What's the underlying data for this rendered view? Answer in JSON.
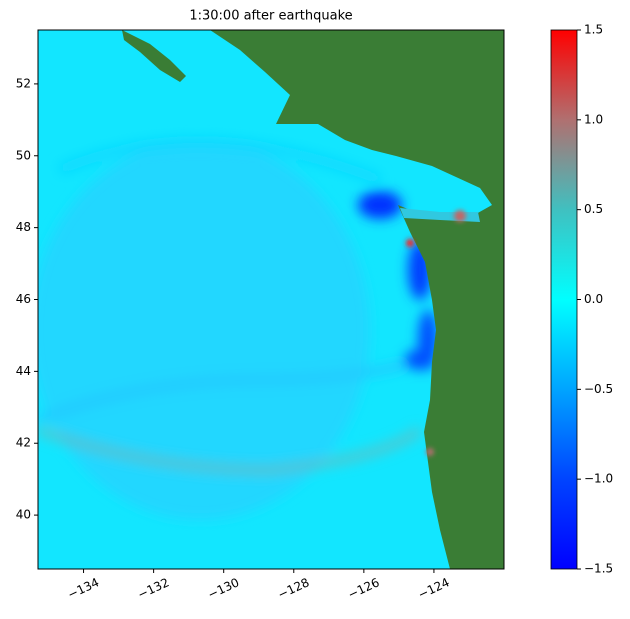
{
  "chart_data": {
    "type": "heatmap",
    "title": "1:30:00 after earthquake",
    "xlim": [
      -135.3,
      -122.0
    ],
    "ylim": [
      38.5,
      53.5
    ],
    "xticks": [
      {
        "value": -134,
        "label": "−134"
      },
      {
        "value": -132,
        "label": "−132"
      },
      {
        "value": -130,
        "label": "−130"
      },
      {
        "value": -128,
        "label": "−128"
      },
      {
        "value": -126,
        "label": "−126"
      },
      {
        "value": -124,
        "label": "−124"
      }
    ],
    "yticks": [
      40,
      42,
      44,
      46,
      48,
      50,
      52
    ],
    "colorbar": {
      "clim": [
        -1.5,
        1.5
      ],
      "ticks": [
        {
          "value": -1.5,
          "label": "−1.5"
        },
        {
          "value": -1.0,
          "label": "−1.0"
        },
        {
          "value": -0.5,
          "label": "−0.5"
        },
        {
          "value": 0.0,
          "label": "0.0"
        },
        {
          "value": 0.5,
          "label": "0.5"
        },
        {
          "value": 1.0,
          "label": "1.0"
        },
        {
          "value": 1.5,
          "label": "1.5"
        }
      ],
      "colormap": [
        "#0000ff",
        "#0044ff",
        "#00a4ff",
        "#00ffff",
        "#40c0c0",
        "#b07070",
        "#ff0000"
      ]
    }
  }
}
